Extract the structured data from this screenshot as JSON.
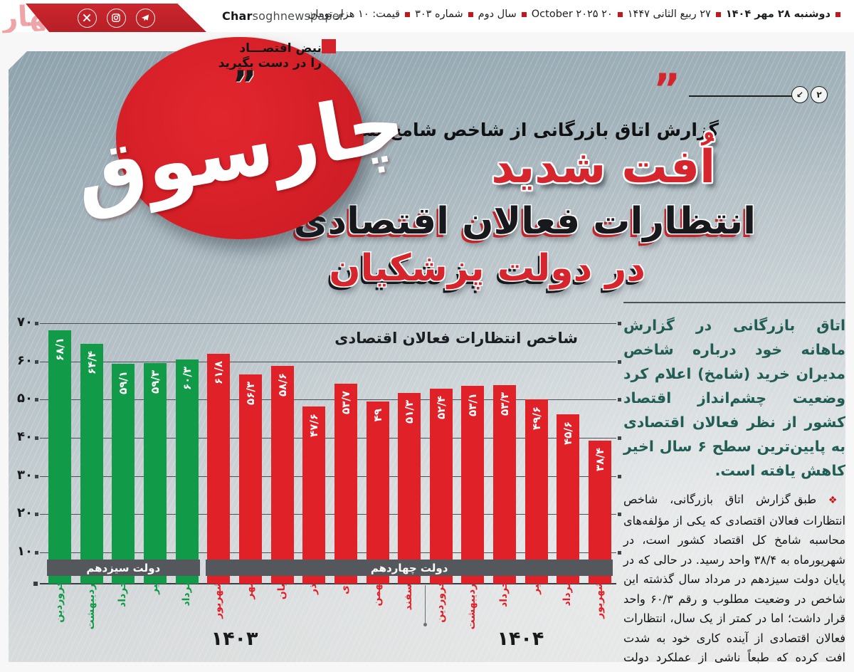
{
  "header": {
    "brand_bold": "Char",
    "brand_rest": "soghnewspaper",
    "date_items": [
      "دوشنبه ۲۸ مهر ۱۴۰۴",
      "۲۷ ربیع الثانی ۱۴۴۷",
      "۲۰ October ۲۰۲۵",
      "سال دوم",
      "شماره ۳۰۳",
      "قیمت: ۱۰ هزار تومان"
    ],
    "social_icons": [
      "x-twitter",
      "instagram",
      "telegram"
    ]
  },
  "logo": {
    "name": "چارسوق",
    "fragment": "چهار",
    "tagline1": "نبض اقتصـــاد",
    "tagline2": "را در دست بگیرید",
    "quote_mark": "”"
  },
  "headline": {
    "badge": "۲",
    "arrow_badge": "↙",
    "quote_glyph": "”",
    "kicker": "گزارش اتاق بازرگانی از شاخص شامخ نشان داد؛",
    "line1": "اُفت شدید",
    "line2": "انتظارات فعالان اقتصادی",
    "line3": "در دولت پزشکیان"
  },
  "article": {
    "lead": "اتاق بازرگانی در گزارش ماهانه خود درباره شاخص مدیران خرید (شامخ) اعلام کرد وضعیت چشم‌انداز اقتصاد کشور از نظر فعالان اقتصادی به پایین‌ترین سطح ۶ سال اخیر کاهش یافته است.",
    "body": "طبق گزارش اتاق بازرگانی، شاخص انتظارات فعالان اقتصادی که یکی از مؤلفه‌های محاسبه شامخ کل اقتصاد کشور است، در شهریورماه به ۳۸/۴ واحد رسید. در حالی که در پایان دولت سیزدهم در مرداد سال گذشته این شاخص در وضعیت مطلوب و رقم ۶۰/۳ واحد قرار داشت؛ اما در کمتر از یک سال، انتظارات فعالان اقتصادی از آینده کاری خود به شدت افت کرده که طبعاً ناشی از عملکرد دولت مسعود پزشکیان است."
  },
  "chart_data": {
    "type": "bar",
    "title": "شاخص انتظارات فعالان اقتصادی",
    "ylim": [
      0,
      70
    ],
    "grid": true,
    "yticks": [
      {
        "v": 70,
        "fa": "۷۰"
      },
      {
        "v": 60,
        "fa": "۶۰"
      },
      {
        "v": 50,
        "fa": "۵۰"
      },
      {
        "v": 40,
        "fa": "۴۰"
      },
      {
        "v": 30,
        "fa": "۳۰"
      },
      {
        "v": 20,
        "fa": "۲۰"
      },
      {
        "v": 10,
        "fa": "۱۰"
      }
    ],
    "governments": [
      {
        "name": "دولت سیزدهم",
        "color": "#119a47",
        "from": 0,
        "to": 4
      },
      {
        "name": "دولت چهاردهم",
        "color": "#e02128",
        "from": 5,
        "to": 17
      }
    ],
    "years": [
      {
        "label": "۱۴۰۳",
        "from": 0,
        "to": 11
      },
      {
        "label": "۱۴۰۴",
        "from": 12,
        "to": 17
      }
    ],
    "bars": [
      {
        "month": "فروردین",
        "year": "۱۴۰۳",
        "value": 68.1,
        "fa": "۶۸/۱"
      },
      {
        "month": "اردیبهشت",
        "year": "۱۴۰۳",
        "value": 64.4,
        "fa": "۶۴/۴"
      },
      {
        "month": "خرداد",
        "year": "۱۴۰۳",
        "value": 59.1,
        "fa": "۵۹/۱"
      },
      {
        "month": "تیر",
        "year": "۱۴۰۳",
        "value": 59.3,
        "fa": "۵۹/۳"
      },
      {
        "month": "مرداد",
        "year": "۱۴۰۳",
        "value": 60.3,
        "fa": "۶۰/۳"
      },
      {
        "month": "شهریور",
        "year": "۱۴۰۳",
        "value": 61.8,
        "fa": "۶۱/۸"
      },
      {
        "month": "مهر",
        "year": "۱۴۰۳",
        "value": 56.3,
        "fa": "۵۶/۳"
      },
      {
        "month": "آبان",
        "year": "۱۴۰۳",
        "value": 58.6,
        "fa": "۵۸/۶"
      },
      {
        "month": "آذر",
        "year": "۱۴۰۳",
        "value": 47.6,
        "fa": "۴۷/۶"
      },
      {
        "month": "دی",
        "year": "۱۴۰۳",
        "value": 53.7,
        "fa": "۵۳/۷"
      },
      {
        "month": "بهمن",
        "year": "۱۴۰۳",
        "value": 49,
        "fa": "۴۹"
      },
      {
        "month": "اسفند",
        "year": "۱۴۰۳",
        "value": 51.3,
        "fa": "۵۱/۳"
      },
      {
        "month": "فروردین",
        "year": "۱۴۰۴",
        "value": 52.4,
        "fa": "۵۲/۴"
      },
      {
        "month": "اردیبهشت",
        "year": "۱۴۰۴",
        "value": 53.1,
        "fa": "۵۳/۱"
      },
      {
        "month": "خرداد",
        "year": "۱۴۰۴",
        "value": 53.3,
        "fa": "۵۳/۳"
      },
      {
        "month": "تیر",
        "year": "۱۴۰۴",
        "value": 49.6,
        "fa": "۴۹/۶"
      },
      {
        "month": "مرداد",
        "year": "۱۴۰۴",
        "value": 45.6,
        "fa": "۴۵/۶"
      },
      {
        "month": "شهریور",
        "year": "۱۴۰۴",
        "value": 38.4,
        "fa": "۳۸/۴"
      }
    ]
  },
  "colors": {
    "green_bar": "#119a47",
    "red_bar": "#e02128",
    "band_gray": "#54585c",
    "headline_red": "#d6252c",
    "accent_red": "#c4161c"
  }
}
